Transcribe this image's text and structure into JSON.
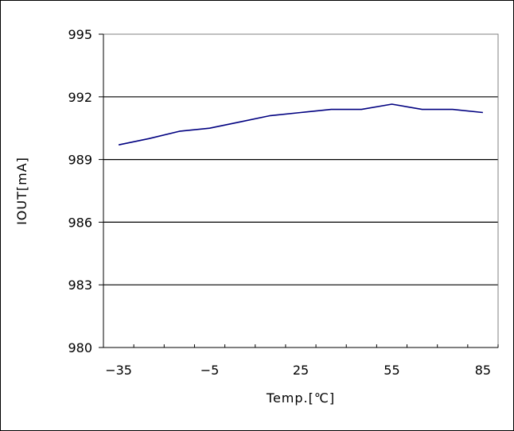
{
  "chart_data": {
    "type": "line",
    "title": "",
    "xlabel": "Temp.[℃]",
    "ylabel": "IOUT[mA]",
    "xlim": [
      -40,
      90
    ],
    "ylim": [
      980,
      995
    ],
    "x_ticks": [
      -35,
      -5,
      25,
      55,
      85
    ],
    "y_ticks": [
      980,
      983,
      986,
      989,
      992,
      995
    ],
    "x_tick_labels": [
      "−35",
      "−5",
      "25",
      "55",
      "85"
    ],
    "y_tick_labels": [
      "980",
      "983",
      "986",
      "989",
      "992",
      "995"
    ],
    "grid": "horizontal",
    "legend": "none",
    "series": [
      {
        "color": "#000080",
        "x": [
          -35,
          -25,
          -15,
          -5,
          5,
          15,
          25,
          35,
          45,
          55,
          65,
          75,
          85
        ],
        "values": [
          989.7,
          990.0,
          990.35,
          990.5,
          990.8,
          991.1,
          991.25,
          991.4,
          991.4,
          991.65,
          991.4,
          991.4,
          991.25
        ]
      }
    ]
  }
}
